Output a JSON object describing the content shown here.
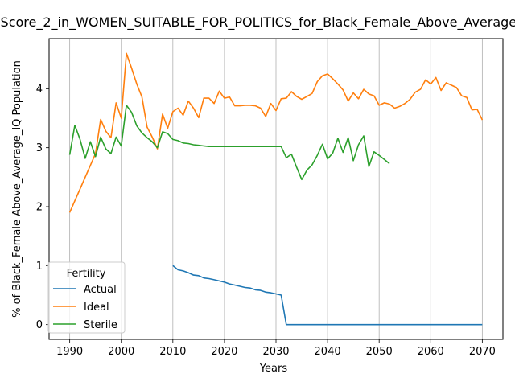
{
  "chart_data": {
    "type": "line",
    "title": "Score_2_in_WOMEN_SUITABLE_FOR_POLITICS_for_Black_Female_Above_Average_IQ",
    "xlabel": "Years",
    "ylabel": "% of Black_Female Above_Average_IQ Population",
    "xlim": [
      1986,
      2074
    ],
    "ylim": [
      -0.25,
      4.85
    ],
    "xticks": [
      1990,
      2000,
      2010,
      2020,
      2030,
      2040,
      2050,
      2060,
      2070
    ],
    "yticks": [
      0,
      1,
      2,
      3,
      4
    ],
    "grid": "x-only",
    "legend": {
      "title": "Fertility",
      "placement": "lower-left"
    },
    "series": [
      {
        "name": "Actual",
        "color": "#1f77b4",
        "x": [
          2010,
          2011,
          2012,
          2013,
          2014,
          2015,
          2016,
          2017,
          2018,
          2019,
          2020,
          2021,
          2022,
          2023,
          2024,
          2025,
          2026,
          2027,
          2028,
          2029,
          2030,
          2031,
          2032,
          2033,
          2034,
          2035,
          2036,
          2037,
          2038,
          2039,
          2040,
          2041,
          2042,
          2043,
          2044,
          2045,
          2046,
          2047,
          2048,
          2049,
          2050,
          2051,
          2052,
          2053,
          2054,
          2055,
          2056,
          2057,
          2058,
          2059,
          2060,
          2061,
          2062,
          2063,
          2064,
          2065,
          2066,
          2067,
          2068,
          2069,
          2070
        ],
        "y": [
          1.0,
          0.93,
          0.91,
          0.88,
          0.84,
          0.83,
          0.79,
          0.78,
          0.76,
          0.74,
          0.72,
          0.69,
          0.67,
          0.65,
          0.63,
          0.62,
          0.59,
          0.58,
          0.55,
          0.54,
          0.52,
          0.5,
          0.0,
          0.0,
          0.0,
          0.0,
          0.0,
          0.0,
          0.0,
          0.0,
          0.0,
          0.0,
          0.0,
          0.0,
          0.0,
          0.0,
          0.0,
          0.0,
          0.0,
          0.0,
          0.0,
          0.0,
          0.0,
          0.0,
          0.0,
          0.0,
          0.0,
          0.0,
          0.0,
          0.0,
          0.0,
          0.0,
          0.0,
          0.0,
          0.0,
          0.0,
          0.0,
          0.0,
          0.0,
          0.0,
          0.0
        ]
      },
      {
        "name": "Ideal",
        "color": "#ff7f0e",
        "x": [
          1990,
          1991,
          1992,
          1993,
          1994,
          1995,
          1996,
          1997,
          1998,
          1999,
          2000,
          2001,
          2002,
          2003,
          2004,
          2005,
          2006,
          2007,
          2008,
          2009,
          2010,
          2011,
          2012,
          2013,
          2014,
          2015,
          2016,
          2017,
          2018,
          2019,
          2020,
          2021,
          2022,
          2023,
          2024,
          2025,
          2026,
          2027,
          2028,
          2029,
          2030,
          2031,
          2032,
          2033,
          2034,
          2035,
          2036,
          2037,
          2038,
          2039,
          2040,
          2041,
          2042,
          2043,
          2044,
          2045,
          2046,
          2047,
          2048,
          2049,
          2050,
          2051,
          2052,
          2053,
          2054,
          2055,
          2056,
          2057,
          2058,
          2059,
          2060,
          2061,
          2062,
          2063,
          2064,
          2065,
          2066,
          2067,
          2068,
          2069,
          2070
        ],
        "y": [
          1.9,
          2.1,
          2.3,
          2.5,
          2.7,
          2.9,
          3.48,
          3.28,
          3.17,
          3.76,
          3.5,
          4.6,
          4.35,
          4.08,
          3.86,
          3.35,
          3.18,
          2.98,
          3.57,
          3.33,
          3.61,
          3.67,
          3.55,
          3.79,
          3.67,
          3.51,
          3.84,
          3.84,
          3.75,
          3.96,
          3.84,
          3.86,
          3.71,
          3.71,
          3.72,
          3.72,
          3.71,
          3.67,
          3.53,
          3.75,
          3.63,
          3.83,
          3.84,
          3.95,
          3.87,
          3.82,
          3.87,
          3.92,
          4.12,
          4.22,
          4.25,
          4.17,
          4.08,
          3.98,
          3.79,
          3.93,
          3.83,
          3.99,
          3.91,
          3.88,
          3.72,
          3.76,
          3.74,
          3.67,
          3.7,
          3.75,
          3.82,
          3.94,
          3.99,
          4.15,
          4.08,
          4.19,
          3.97,
          4.1,
          4.06,
          4.02,
          3.88,
          3.85,
          3.64,
          3.65,
          3.47
        ]
      },
      {
        "name": "Sterile",
        "color": "#2ca02c",
        "x": [
          1990,
          1991,
          1992,
          1993,
          1994,
          1995,
          1996,
          1997,
          1998,
          1999,
          2000,
          2001,
          2002,
          2003,
          2004,
          2005,
          2006,
          2007,
          2008,
          2009,
          2010,
          2011,
          2012,
          2013,
          2014,
          2015,
          2016,
          2017,
          2018,
          2019,
          2020,
          2021,
          2022,
          2023,
          2024,
          2025,
          2026,
          2027,
          2028,
          2029,
          2030,
          2031,
          2032,
          2033,
          2034,
          2035,
          2036,
          2037,
          2038,
          2039,
          2040,
          2041,
          2042,
          2043,
          2044,
          2045,
          2046,
          2047,
          2048,
          2049,
          2050,
          2051,
          2052
        ],
        "y": [
          2.88,
          3.38,
          3.14,
          2.82,
          3.1,
          2.85,
          3.18,
          2.98,
          2.9,
          3.18,
          3.03,
          3.72,
          3.6,
          3.37,
          3.25,
          3.17,
          3.1,
          3.0,
          3.27,
          3.24,
          3.14,
          3.12,
          3.08,
          3.07,
          3.05,
          3.04,
          3.03,
          3.02,
          3.02,
          3.02,
          3.02,
          3.02,
          3.02,
          3.02,
          3.02,
          3.02,
          3.02,
          3.02,
          3.02,
          3.02,
          3.02,
          3.02,
          2.83,
          2.89,
          2.67,
          2.46,
          2.62,
          2.71,
          2.87,
          3.06,
          2.81,
          2.91,
          3.16,
          2.92,
          3.17,
          2.78,
          3.05,
          3.2,
          2.68,
          2.93,
          2.87,
          2.8,
          2.73
        ]
      }
    ]
  }
}
